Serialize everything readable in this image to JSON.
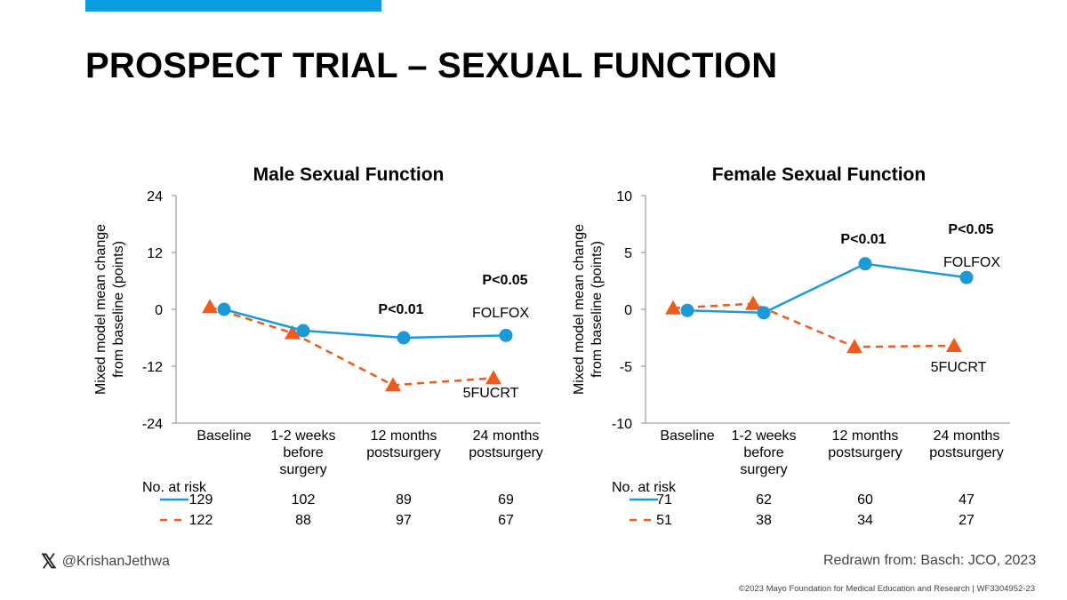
{
  "slide": {
    "title": "PROSPECT TRIAL – SEXUAL FUNCTION",
    "accent_color": "#0a9ee0",
    "handle": "@KrishanJethwa",
    "handle_icon": "x-logo-icon",
    "source": "Redrawn from: Basch: JCO, 2023",
    "copyright": "©2023 Mayo Foundation for Medical Education and Research  |  WF3304952-23"
  },
  "colors": {
    "folfox": "#1a9bd7",
    "fucrt": "#f05a1a",
    "axis": "#888888"
  },
  "risk_label": "No. at risk",
  "chart_data": [
    {
      "type": "line",
      "title": "Male Sexual Function",
      "ylabel_lines": [
        "Mixed model mean change",
        "from baseline (points)"
      ],
      "categories": [
        [
          "Baseline"
        ],
        [
          "1-2 weeks",
          "before",
          "surgery"
        ],
        [
          "12 months",
          "postsurgery"
        ],
        [
          "24 months",
          "postsurgery"
        ]
      ],
      "ylim": [
        -24,
        24
      ],
      "yticks": [
        24,
        12,
        0,
        -12,
        -24
      ],
      "series": [
        {
          "name": "FOLFOX",
          "values": [
            0,
            -4.5,
            -6,
            -5.5
          ]
        },
        {
          "name": "5FUCRT",
          "values": [
            0.5,
            -5,
            -16,
            -14.5
          ]
        }
      ],
      "annotations": [
        "P<0.01",
        "P<0.05"
      ],
      "risk": [
        [
          129,
          102,
          89,
          69
        ],
        [
          122,
          88,
          97,
          67
        ]
      ]
    },
    {
      "type": "line",
      "title": "Female Sexual Function",
      "ylabel_lines": [
        "Mixed model mean change",
        "from baseline (points)"
      ],
      "categories": [
        [
          "Baseline"
        ],
        [
          "1-2 weeks",
          "before",
          "surgery"
        ],
        [
          "12 months",
          "postsurgery"
        ],
        [
          "24 months",
          "postsurgery"
        ]
      ],
      "ylim": [
        -10,
        10
      ],
      "yticks": [
        10,
        5,
        0,
        -5,
        -10
      ],
      "series": [
        {
          "name": "FOLFOX",
          "values": [
            -0.1,
            -0.3,
            4,
            2.8
          ]
        },
        {
          "name": "5FUCRT",
          "values": [
            0.1,
            0.5,
            -3.3,
            -3.2
          ]
        }
      ],
      "annotations": [
        "P<0.01",
        "P<0.05"
      ],
      "risk": [
        [
          71,
          62,
          60,
          47
        ],
        [
          51,
          38,
          34,
          27
        ]
      ]
    }
  ]
}
